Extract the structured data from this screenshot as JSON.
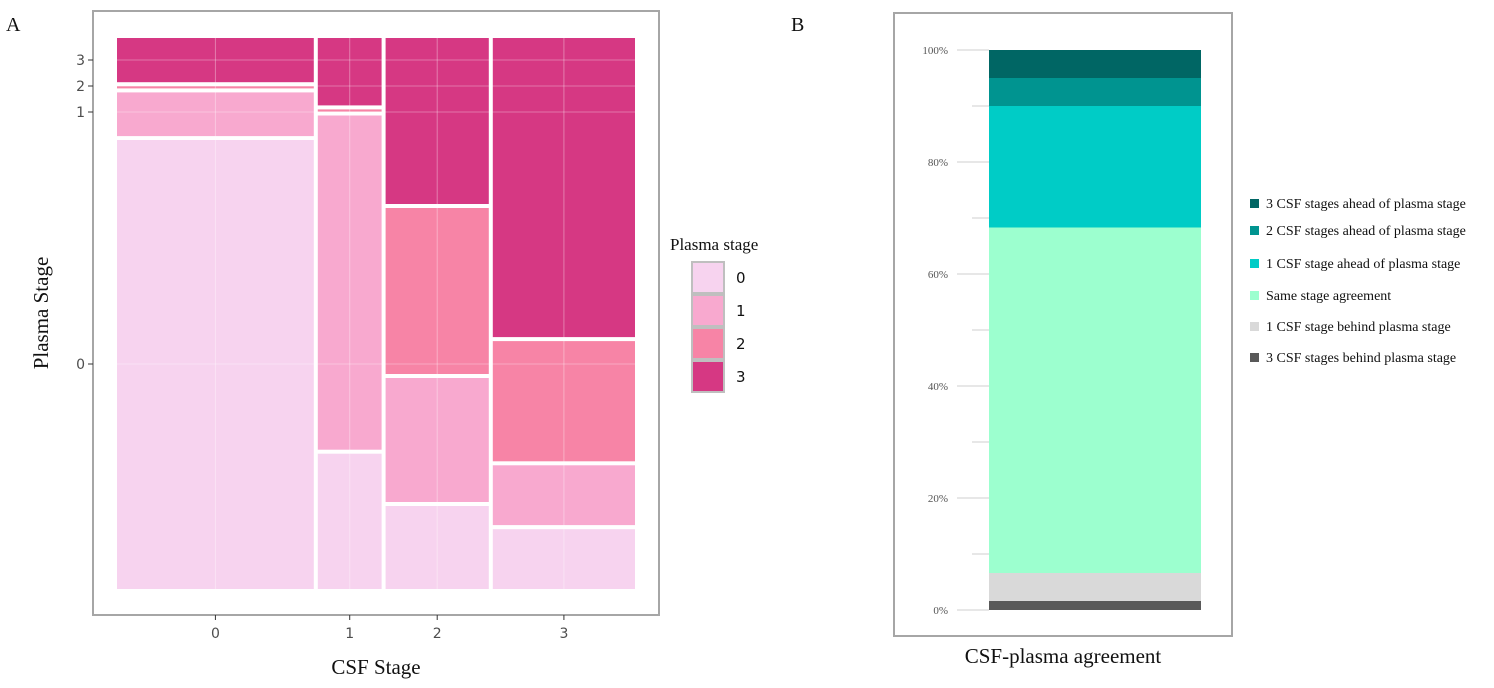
{
  "panels": {
    "a_label": "A",
    "b_label": "B"
  },
  "chart_data": [
    {
      "type": "mosaic",
      "panel": "A",
      "xlabel": "CSF Stage",
      "ylabel": "Plasma Stage",
      "x_categories": [
        "0",
        "1",
        "2",
        "3"
      ],
      "x_widths": [
        0.389,
        0.126,
        0.204,
        0.281
      ],
      "y_tick_labels": [
        "0",
        "1",
        "2",
        "3"
      ],
      "legend": {
        "title": "Plasma stage",
        "position": "right",
        "entries": [
          {
            "label": "0",
            "color": "#F7D3EF"
          },
          {
            "label": "1",
            "color": "#F8A9CF"
          },
          {
            "label": "2",
            "color": "#F784A6"
          },
          {
            "label": "3",
            "color": "#D63883"
          }
        ]
      },
      "series": [
        {
          "csf_stage": "0",
          "plasma_proportions": [
            0.833,
            0.081,
            0.004,
            0.082
          ]
        },
        {
          "csf_stage": "1",
          "plasma_proportions": [
            0.251,
            0.62,
            0.004,
            0.125
          ]
        },
        {
          "csf_stage": "2",
          "plasma_proportions": [
            0.154,
            0.23,
            0.308,
            0.308
          ]
        },
        {
          "csf_stage": "3",
          "plasma_proportions": [
            0.111,
            0.111,
            0.223,
            0.555
          ]
        }
      ],
      "grid": true
    },
    {
      "type": "bar",
      "stacked": true,
      "panel": "B",
      "xlabel": "CSF-plasma agreement",
      "ylabel": "",
      "ylim": [
        0,
        100
      ],
      "y_ticks": [
        "0%",
        "20%",
        "40%",
        "60%",
        "80%",
        "100%"
      ],
      "categories": [
        ""
      ],
      "legend_position": "right",
      "series": [
        {
          "name": "3 CSF stages behind plasma stage",
          "color": "#595959",
          "values": [
            1.6
          ]
        },
        {
          "name": "1 CSF stage behind plasma stage",
          "color": "#D9D9D9",
          "values": [
            5.0
          ]
        },
        {
          "name": "Same stage agreement",
          "color": "#9CFFCF",
          "values": [
            61.7
          ]
        },
        {
          "name": "1 CSF stage ahead of plasma stage",
          "color": "#00CCC6",
          "values": [
            21.7
          ]
        },
        {
          "name": "2 CSF stages ahead of plasma stage",
          "color": "#009490",
          "values": [
            5.0
          ]
        },
        {
          "name": "3 CSF stages ahead of plasma stage",
          "color": "#006664",
          "values": [
            5.0
          ]
        }
      ],
      "legend_order": [
        5,
        4,
        3,
        2,
        1,
        0
      ]
    }
  ]
}
